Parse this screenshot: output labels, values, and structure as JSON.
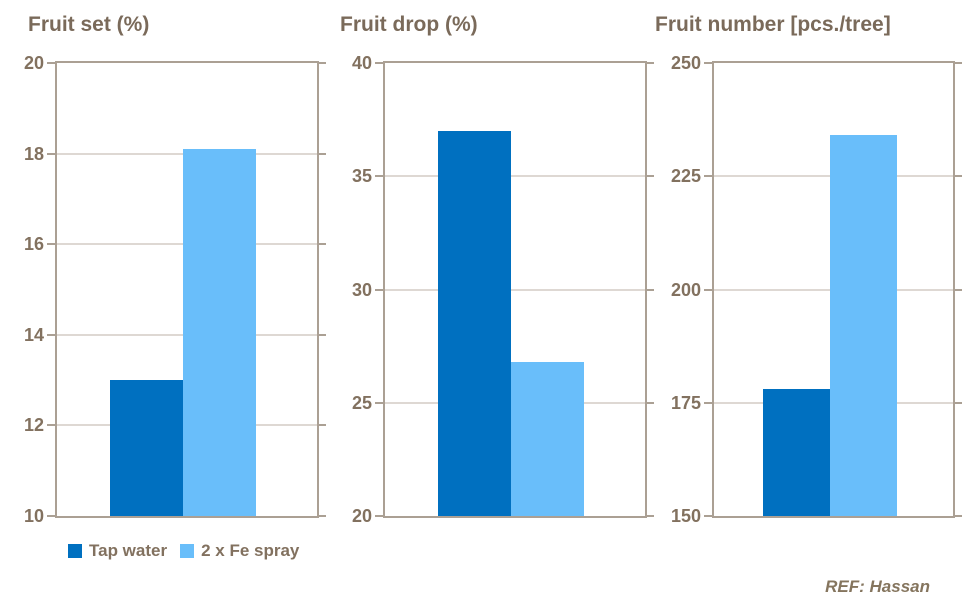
{
  "page": {
    "background": "#ffffff"
  },
  "colors": {
    "series_dark_blue": "#0070C0",
    "series_light_blue": "#69BEFA",
    "axis_border": "#ABA094",
    "gridline": "#BCB2A7",
    "text_brown": "#7A6A5A"
  },
  "legend": {
    "position": "bottom-left",
    "items": [
      {
        "label": "Tap water",
        "color": "#0070C0"
      },
      {
        "label": "2 x Fe spray",
        "color": "#69BEFA"
      }
    ]
  },
  "footer": {
    "ref_label": "REF: Hassan"
  },
  "chart_data": [
    {
      "type": "bar",
      "title": "Fruit set (%)",
      "xlabel": "",
      "ylabel": "",
      "ylim": [
        10,
        20
      ],
      "yticks": [
        10,
        12,
        14,
        16,
        18,
        20
      ],
      "grid": true,
      "series": [
        {
          "name": "Tap water",
          "value": 13.0,
          "color": "#0070C0"
        },
        {
          "name": "2 x Fe spray",
          "value": 18.1,
          "color": "#69BEFA"
        }
      ]
    },
    {
      "type": "bar",
      "title": "Fruit drop (%)",
      "xlabel": "",
      "ylabel": "",
      "ylim": [
        20,
        40
      ],
      "yticks": [
        20,
        25,
        30,
        35,
        40
      ],
      "grid": true,
      "series": [
        {
          "name": "Tap water",
          "value": 37.0,
          "color": "#0070C0"
        },
        {
          "name": "2 x Fe spray",
          "value": 26.8,
          "color": "#69BEFA"
        }
      ]
    },
    {
      "type": "bar",
      "title": "Fruit number [pcs./tree]",
      "xlabel": "",
      "ylabel": "",
      "ylim": [
        150,
        250
      ],
      "yticks": [
        150,
        175,
        200,
        225,
        250
      ],
      "grid": true,
      "series": [
        {
          "name": "Tap water",
          "value": 178,
          "color": "#0070C0"
        },
        {
          "name": "2 x Fe spray",
          "value": 234,
          "color": "#69BEFA"
        }
      ]
    }
  ]
}
